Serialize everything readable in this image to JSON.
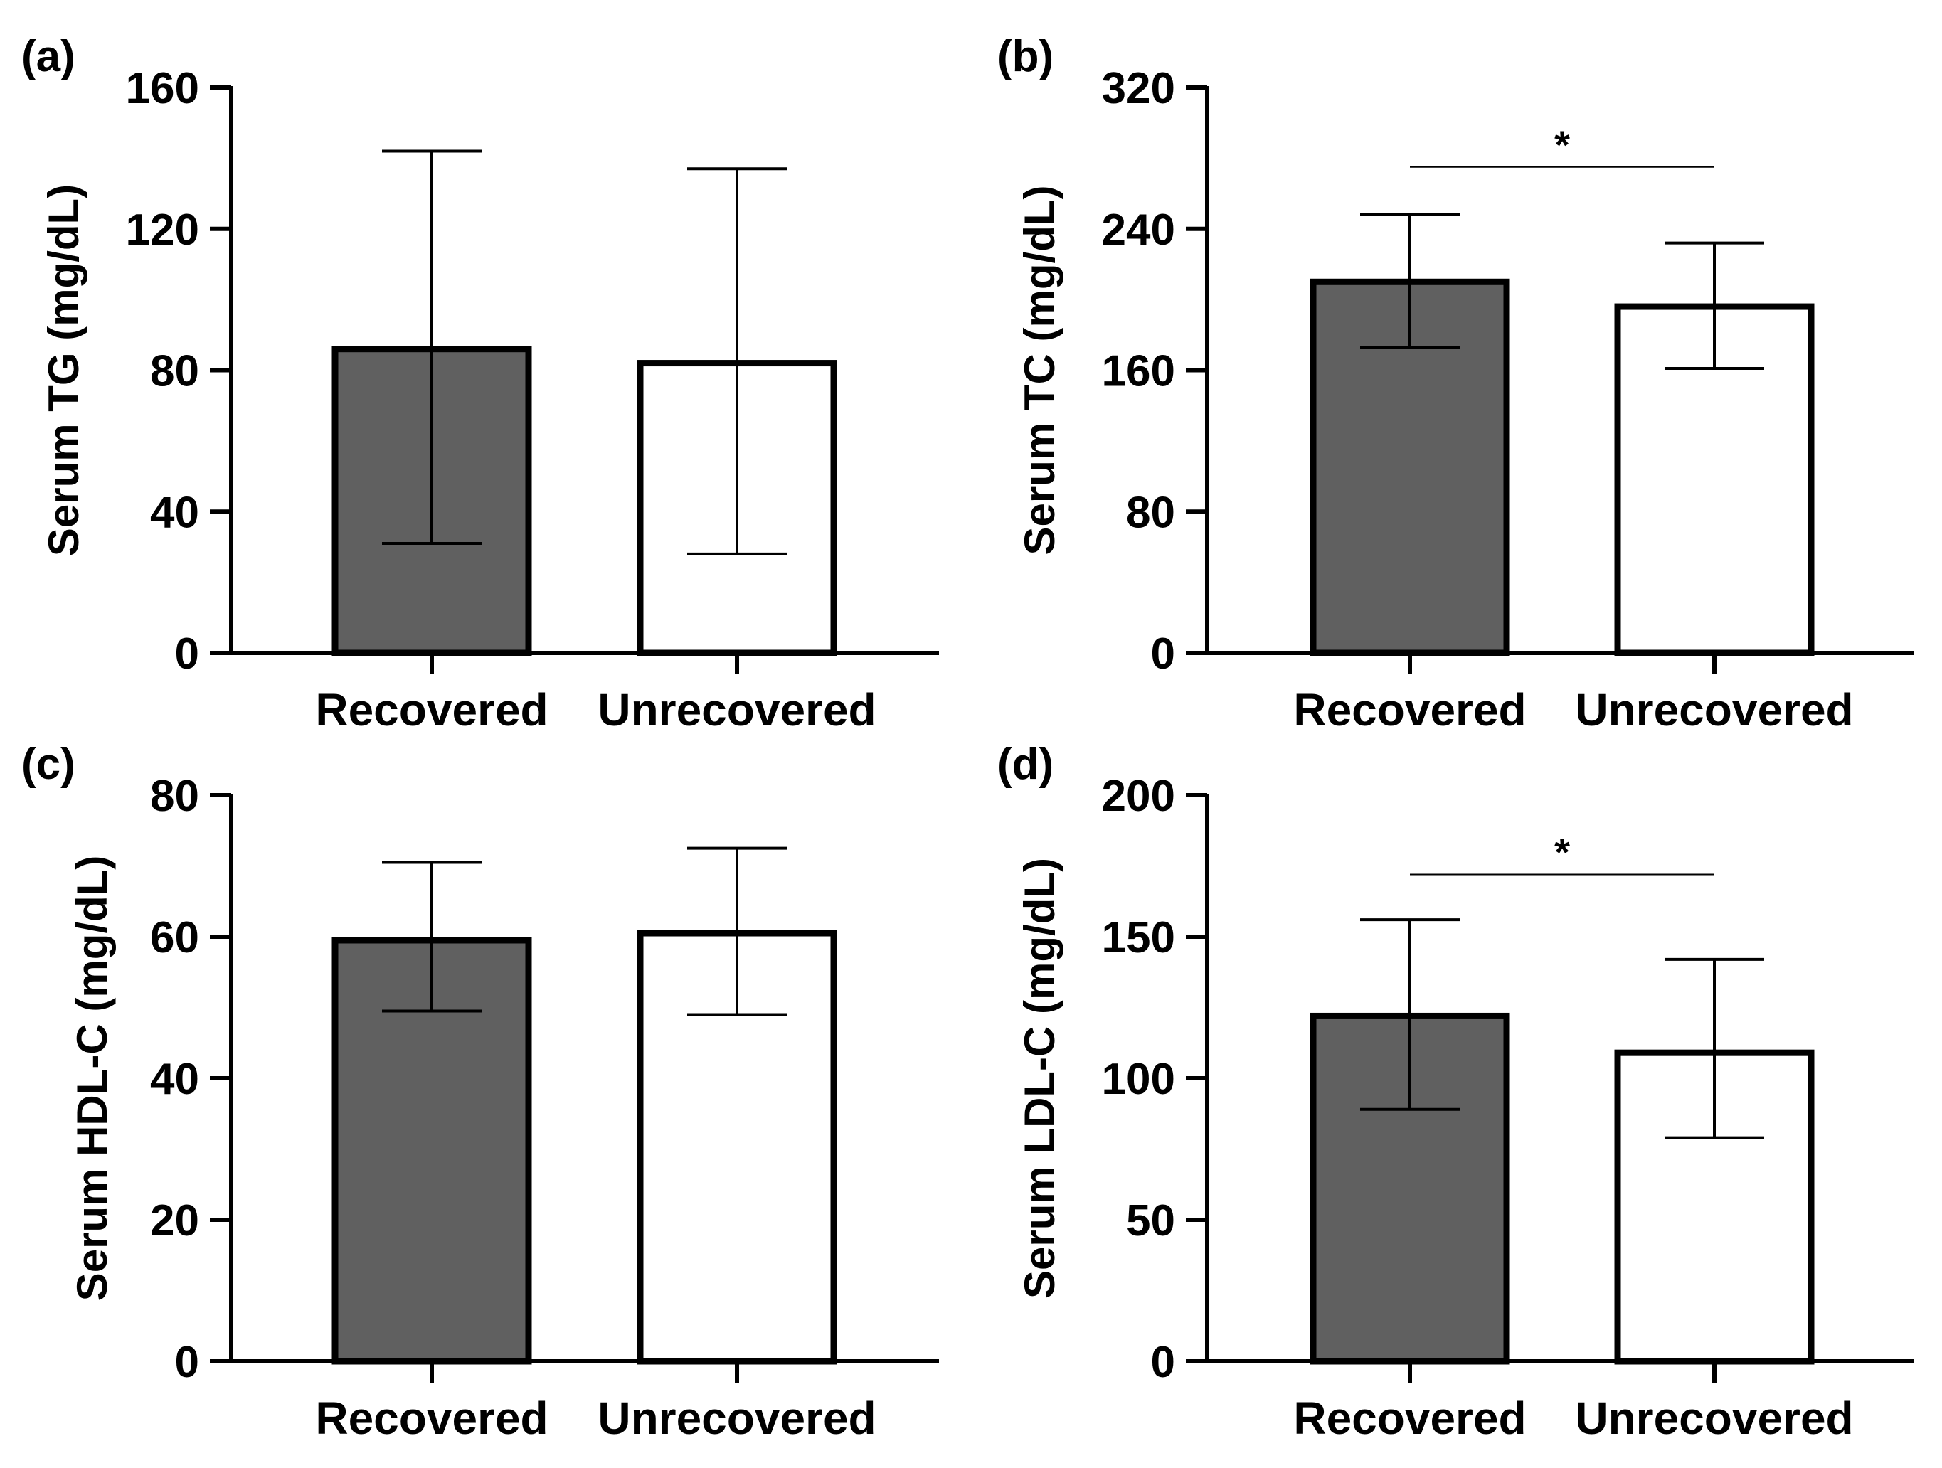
{
  "chart_data": [
    {
      "type": "bar",
      "panel_label": "(a)",
      "ylabel": "Serum TG (mg/dL)",
      "xlabel": "",
      "categories": [
        "Recovered",
        "Unrecovered"
      ],
      "values": [
        86,
        82
      ],
      "error_low": [
        31,
        28
      ],
      "error_high": [
        142,
        137
      ],
      "ylim": [
        0,
        160
      ],
      "yticks": [
        "0",
        "40",
        "80",
        "120",
        "160"
      ],
      "bar_colors": [
        "#606060",
        "#ffffff"
      ],
      "significance": null
    },
    {
      "type": "bar",
      "panel_label": "(b)",
      "ylabel": "Serum TC (mg/dL)",
      "xlabel": "",
      "categories": [
        "Recovered",
        "Unrecovered"
      ],
      "values": [
        210,
        196
      ],
      "error_low": [
        173,
        161
      ],
      "error_high": [
        248,
        232
      ],
      "ylim": [
        0,
        320
      ],
      "yticks": [
        "0",
        "80",
        "160",
        "240",
        "320"
      ],
      "bar_colors": [
        "#606060",
        "#ffffff"
      ],
      "significance": {
        "label": "*",
        "y": 275
      }
    },
    {
      "type": "bar",
      "panel_label": "(c)",
      "ylabel": "Serum HDL-C (mg/dL)",
      "xlabel": "",
      "categories": [
        "Recovered",
        "Unrecovered"
      ],
      "values": [
        59.5,
        60.5
      ],
      "error_low": [
        49.5,
        49
      ],
      "error_high": [
        70.5,
        72.5
      ],
      "ylim": [
        0,
        80
      ],
      "yticks": [
        "0",
        "20",
        "40",
        "60",
        "80"
      ],
      "bar_colors": [
        "#606060",
        "#ffffff"
      ],
      "significance": null
    },
    {
      "type": "bar",
      "panel_label": "(d)",
      "ylabel": "Serum LDL-C (mg/dL)",
      "xlabel": "",
      "categories": [
        "Recovered",
        "Unrecovered"
      ],
      "values": [
        122,
        109
      ],
      "error_low": [
        89,
        79
      ],
      "error_high": [
        156,
        142
      ],
      "ylim": [
        0,
        200
      ],
      "yticks": [
        "0",
        "50",
        "100",
        "150",
        "200"
      ],
      "bar_colors": [
        "#606060",
        "#ffffff"
      ],
      "significance": {
        "label": "*",
        "y": 172
      }
    }
  ]
}
